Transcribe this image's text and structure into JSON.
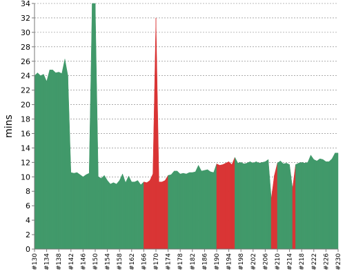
{
  "chart_data": {
    "type": "area",
    "title": "",
    "xlabel": "",
    "ylabel": "mins",
    "ylim": [
      0,
      34
    ],
    "yticks": [
      0,
      2,
      4,
      6,
      8,
      10,
      12,
      14,
      16,
      18,
      20,
      22,
      24,
      26,
      28,
      30,
      32,
      34
    ],
    "x_start": 130,
    "x_end": 230,
    "x_ticks": [
      "#130",
      "#134",
      "#138",
      "#142",
      "#146",
      "#150",
      "#154",
      "#158",
      "#162",
      "#166",
      "#170",
      "#174",
      "#178",
      "#182",
      "#186",
      "#190",
      "#194",
      "#198",
      "#202",
      "#206",
      "#210",
      "#214",
      "#218",
      "#222",
      "#226",
      "#230"
    ],
    "grid": true,
    "colors": {
      "pass": "#41996a",
      "fail": "#d93535"
    },
    "points": [
      {
        "x": 130,
        "y": 24.0,
        "s": "pass"
      },
      {
        "x": 131,
        "y": 24.4,
        "s": "pass"
      },
      {
        "x": 132,
        "y": 24.0,
        "s": "pass"
      },
      {
        "x": 133,
        "y": 24.2,
        "s": "pass"
      },
      {
        "x": 134,
        "y": 23.2,
        "s": "pass"
      },
      {
        "x": 135,
        "y": 24.8,
        "s": "pass"
      },
      {
        "x": 136,
        "y": 24.8,
        "s": "pass"
      },
      {
        "x": 137,
        "y": 24.4,
        "s": "pass"
      },
      {
        "x": 138,
        "y": 24.5,
        "s": "pass"
      },
      {
        "x": 139,
        "y": 24.3,
        "s": "pass"
      },
      {
        "x": 140,
        "y": 26.3,
        "s": "pass"
      },
      {
        "x": 141,
        "y": 24.0,
        "s": "pass"
      },
      {
        "x": 142,
        "y": 10.6,
        "s": "pass"
      },
      {
        "x": 143,
        "y": 10.5,
        "s": "pass"
      },
      {
        "x": 144,
        "y": 10.6,
        "s": "pass"
      },
      {
        "x": 145,
        "y": 10.3,
        "s": "pass"
      },
      {
        "x": 146,
        "y": 10.0,
        "s": "pass"
      },
      {
        "x": 147,
        "y": 10.3,
        "s": "pass"
      },
      {
        "x": 148,
        "y": 10.5,
        "s": "pass"
      },
      {
        "x": 149,
        "y": 34.0,
        "s": "pass"
      },
      {
        "x": 150,
        "y": 34.0,
        "s": "pass"
      },
      {
        "x": 151,
        "y": 10.0,
        "s": "pass"
      },
      {
        "x": 152,
        "y": 9.8,
        "s": "pass"
      },
      {
        "x": 153,
        "y": 10.2,
        "s": "pass"
      },
      {
        "x": 154,
        "y": 9.5,
        "s": "pass"
      },
      {
        "x": 155,
        "y": 9.0,
        "s": "pass"
      },
      {
        "x": 156,
        "y": 9.2,
        "s": "pass"
      },
      {
        "x": 157,
        "y": 9.0,
        "s": "pass"
      },
      {
        "x": 158,
        "y": 9.5,
        "s": "pass"
      },
      {
        "x": 159,
        "y": 10.4,
        "s": "pass"
      },
      {
        "x": 160,
        "y": 9.2,
        "s": "pass"
      },
      {
        "x": 161,
        "y": 10.1,
        "s": "pass"
      },
      {
        "x": 162,
        "y": 9.3,
        "s": "pass"
      },
      {
        "x": 163,
        "y": 9.3,
        "s": "pass"
      },
      {
        "x": 164,
        "y": 9.5,
        "s": "pass"
      },
      {
        "x": 165,
        "y": 8.9,
        "s": "pass"
      },
      {
        "x": 166,
        "y": 9.3,
        "s": "fail"
      },
      {
        "x": 167,
        "y": 9.2,
        "s": "fail"
      },
      {
        "x": 168,
        "y": 9.5,
        "s": "fail"
      },
      {
        "x": 169,
        "y": 10.4,
        "s": "fail"
      },
      {
        "x": 170,
        "y": 32.0,
        "s": "fail"
      },
      {
        "x": 171,
        "y": 9.3,
        "s": "fail"
      },
      {
        "x": 172,
        "y": 9.3,
        "s": "fail"
      },
      {
        "x": 173,
        "y": 9.5,
        "s": "fail"
      },
      {
        "x": 174,
        "y": 10.2,
        "s": "pass"
      },
      {
        "x": 175,
        "y": 10.3,
        "s": "pass"
      },
      {
        "x": 176,
        "y": 10.8,
        "s": "pass"
      },
      {
        "x": 177,
        "y": 10.8,
        "s": "pass"
      },
      {
        "x": 178,
        "y": 10.4,
        "s": "pass"
      },
      {
        "x": 179,
        "y": 10.5,
        "s": "pass"
      },
      {
        "x": 180,
        "y": 10.4,
        "s": "pass"
      },
      {
        "x": 181,
        "y": 10.6,
        "s": "pass"
      },
      {
        "x": 182,
        "y": 10.6,
        "s": "pass"
      },
      {
        "x": 183,
        "y": 10.7,
        "s": "pass"
      },
      {
        "x": 184,
        "y": 11.6,
        "s": "pass"
      },
      {
        "x": 185,
        "y": 10.8,
        "s": "pass"
      },
      {
        "x": 186,
        "y": 10.9,
        "s": "pass"
      },
      {
        "x": 187,
        "y": 11.0,
        "s": "pass"
      },
      {
        "x": 188,
        "y": 10.7,
        "s": "pass"
      },
      {
        "x": 189,
        "y": 10.6,
        "s": "pass"
      },
      {
        "x": 190,
        "y": 11.8,
        "s": "fail"
      },
      {
        "x": 191,
        "y": 11.6,
        "s": "fail"
      },
      {
        "x": 192,
        "y": 11.7,
        "s": "fail"
      },
      {
        "x": 193,
        "y": 11.9,
        "s": "fail"
      },
      {
        "x": 194,
        "y": 12.1,
        "s": "fail"
      },
      {
        "x": 195,
        "y": 11.7,
        "s": "fail"
      },
      {
        "x": 196,
        "y": 12.7,
        "s": "pass"
      },
      {
        "x": 197,
        "y": 11.9,
        "s": "pass"
      },
      {
        "x": 198,
        "y": 12.0,
        "s": "pass"
      },
      {
        "x": 199,
        "y": 11.8,
        "s": "pass"
      },
      {
        "x": 200,
        "y": 11.9,
        "s": "pass"
      },
      {
        "x": 201,
        "y": 12.1,
        "s": "pass"
      },
      {
        "x": 202,
        "y": 11.9,
        "s": "pass"
      },
      {
        "x": 203,
        "y": 12.1,
        "s": "pass"
      },
      {
        "x": 204,
        "y": 11.9,
        "s": "pass"
      },
      {
        "x": 205,
        "y": 12.0,
        "s": "pass"
      },
      {
        "x": 206,
        "y": 12.1,
        "s": "pass"
      },
      {
        "x": 207,
        "y": 12.4,
        "s": "pass"
      },
      {
        "x": 208,
        "y": 7.0,
        "s": "fail"
      },
      {
        "x": 209,
        "y": 10.2,
        "s": "fail"
      },
      {
        "x": 210,
        "y": 11.9,
        "s": "pass"
      },
      {
        "x": 211,
        "y": 12.2,
        "s": "pass"
      },
      {
        "x": 212,
        "y": 11.8,
        "s": "pass"
      },
      {
        "x": 213,
        "y": 11.9,
        "s": "pass"
      },
      {
        "x": 214,
        "y": 11.7,
        "s": "pass"
      },
      {
        "x": 215,
        "y": 8.4,
        "s": "fail"
      },
      {
        "x": 216,
        "y": 11.7,
        "s": "pass"
      },
      {
        "x": 217,
        "y": 11.9,
        "s": "pass"
      },
      {
        "x": 218,
        "y": 12.0,
        "s": "pass"
      },
      {
        "x": 219,
        "y": 11.9,
        "s": "pass"
      },
      {
        "x": 220,
        "y": 12.0,
        "s": "pass"
      },
      {
        "x": 221,
        "y": 13.0,
        "s": "pass"
      },
      {
        "x": 222,
        "y": 12.4,
        "s": "pass"
      },
      {
        "x": 223,
        "y": 12.2,
        "s": "pass"
      },
      {
        "x": 224,
        "y": 12.5,
        "s": "pass"
      },
      {
        "x": 225,
        "y": 12.4,
        "s": "pass"
      },
      {
        "x": 226,
        "y": 12.1,
        "s": "pass"
      },
      {
        "x": 227,
        "y": 12.1,
        "s": "pass"
      },
      {
        "x": 228,
        "y": 12.5,
        "s": "pass"
      },
      {
        "x": 229,
        "y": 13.3,
        "s": "pass"
      }
    ]
  }
}
